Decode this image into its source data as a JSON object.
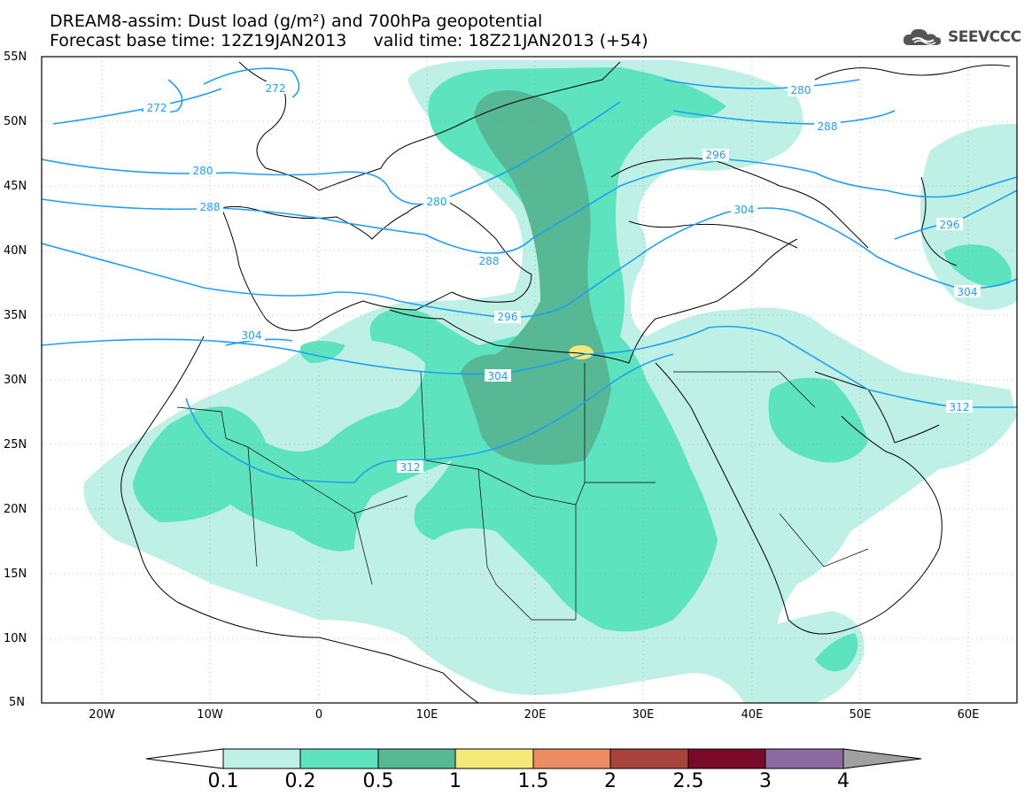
{
  "title": {
    "line1": "DREAM8-assim: Dust load (g/m²) and 700hPa geopotential",
    "line2": "Forecast base time: 12Z19JAN2013     valid time: 18Z21JAN2013 (+54)"
  },
  "logo": {
    "text": "SEEVCCC",
    "icon": "cloud-logo-icon"
  },
  "map": {
    "lat_labels": [
      "55N",
      "50N",
      "45N",
      "40N",
      "35N",
      "30N",
      "25N",
      "20N",
      "15N",
      "10N",
      "5N"
    ],
    "lon_labels": [
      "20W",
      "10W",
      "0",
      "10E",
      "20E",
      "30E",
      "40E",
      "50E",
      "60E"
    ],
    "contour_labels": [
      "272",
      "272",
      "280",
      "280",
      "280",
      "288",
      "288",
      "288",
      "296",
      "296",
      "296",
      "304",
      "304",
      "304",
      "304",
      "312",
      "312"
    ]
  },
  "colorbar": {
    "labels": [
      "0.1",
      "0.2",
      "0.5",
      "1",
      "1.5",
      "2",
      "2.5",
      "3",
      "4"
    ],
    "colors": [
      "#ffffff",
      "#bff0e6",
      "#5de3be",
      "#57b896",
      "#f5e87a",
      "#ec8c62",
      "#a9443c",
      "#7a0a2a",
      "#8a6aa0",
      "#a0a0a0"
    ]
  },
  "dust_colors": {
    "light": "#bff0e6",
    "medium": "#5de3be",
    "dark": "#57b896",
    "yellow": "#f5e87a"
  },
  "contour_color": "#1ea0f0"
}
